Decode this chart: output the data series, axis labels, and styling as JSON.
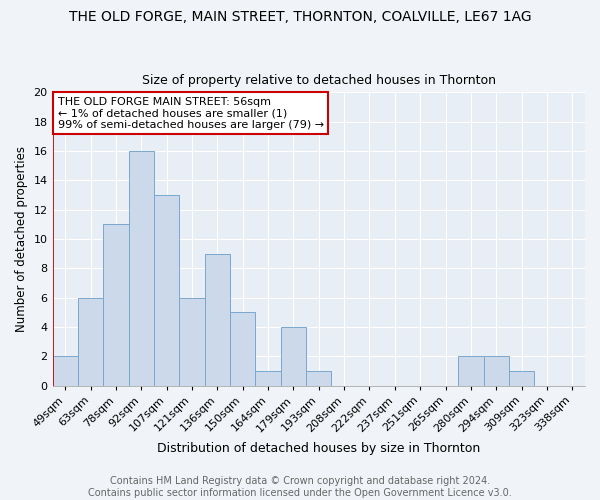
{
  "title": "THE OLD FORGE, MAIN STREET, THORNTON, COALVILLE, LE67 1AG",
  "subtitle": "Size of property relative to detached houses in Thornton",
  "xlabel": "Distribution of detached houses by size in Thornton",
  "ylabel": "Number of detached properties",
  "footer": "Contains HM Land Registry data © Crown copyright and database right 2024.\nContains public sector information licensed under the Open Government Licence v3.0.",
  "bin_labels": [
    "49sqm",
    "63sqm",
    "78sqm",
    "92sqm",
    "107sqm",
    "121sqm",
    "136sqm",
    "150sqm",
    "164sqm",
    "179sqm",
    "193sqm",
    "208sqm",
    "222sqm",
    "237sqm",
    "251sqm",
    "265sqm",
    "280sqm",
    "294sqm",
    "309sqm",
    "323sqm",
    "338sqm"
  ],
  "bin_values": [
    2,
    6,
    11,
    16,
    13,
    6,
    9,
    5,
    1,
    4,
    1,
    0,
    0,
    0,
    0,
    0,
    2,
    2,
    1,
    0,
    0
  ],
  "bar_color": "#ccd9ea",
  "bar_edge_color": "#7ba7cc",
  "annotation_title": "THE OLD FORGE MAIN STREET: 56sqm",
  "annotation_line1": "← 1% of detached houses are smaller (1)",
  "annotation_line2": "99% of semi-detached houses are larger (79) →",
  "annotation_box_facecolor": "#ffffff",
  "annotation_border_color": "#cc0000",
  "background_color": "#f0f4f8",
  "plot_bg_color": "#e8eef5",
  "grid_color": "#ffffff",
  "red_line_color": "#cc0000",
  "footer_color": "#666666",
  "ylim": [
    0,
    20
  ],
  "yticks": [
    0,
    2,
    4,
    6,
    8,
    10,
    12,
    14,
    16,
    18,
    20
  ],
  "title_fontsize": 10,
  "subtitle_fontsize": 9,
  "xlabel_fontsize": 9,
  "ylabel_fontsize": 8.5,
  "tick_fontsize": 8,
  "annotation_fontsize": 8,
  "footer_fontsize": 7
}
